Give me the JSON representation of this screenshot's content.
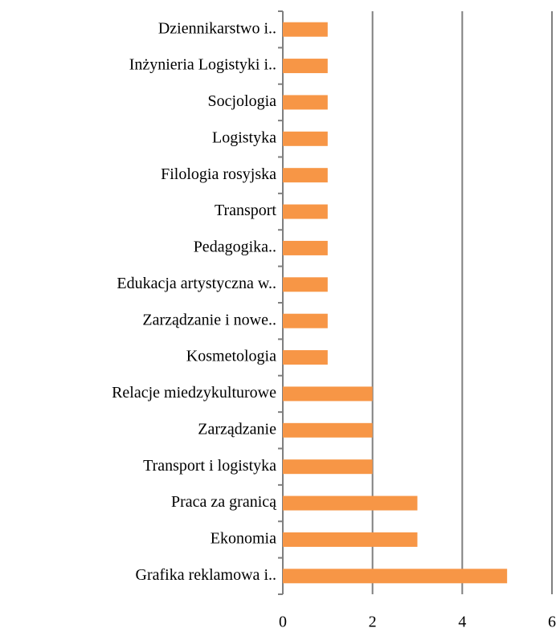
{
  "chart_data": {
    "type": "bar",
    "orientation": "horizontal",
    "categories": [
      "Dziennikarstwo i..",
      "Inżynieria Logistyki i..",
      "Socjologia",
      "Logistyka",
      "Filologia rosyjska",
      "Transport",
      "Pedagogika..",
      "Edukacja artystyczna w..",
      "Zarządzanie i nowe..",
      "Kosmetologia",
      "Relacje miedzykulturowe",
      "Zarządzanie",
      "Transport i logistyka",
      "Praca za granicą",
      "Ekonomia",
      "Grafika reklamowa i.."
    ],
    "values": [
      1,
      1,
      1,
      1,
      1,
      1,
      1,
      1,
      1,
      1,
      2,
      2,
      2,
      3,
      3,
      5
    ],
    "color": "#f79646",
    "xlim": [
      0,
      6
    ],
    "xticks": [
      0,
      2,
      4,
      6
    ],
    "grid": true
  }
}
